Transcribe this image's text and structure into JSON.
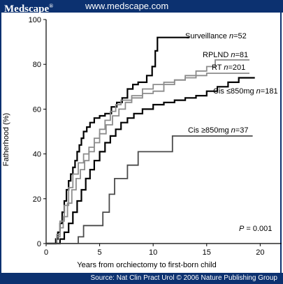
{
  "header": {
    "brand": "Medscape",
    "brand_mark": "®",
    "site": "www.medscape.com"
  },
  "footer": {
    "source": "Source: Nat Clin Pract Urol © 2006 Nature Publishing Group"
  },
  "colors": {
    "banner": "#0c3170",
    "black_series": "#000000",
    "gray_series": "#8c8c8c"
  },
  "chart_data": {
    "type": "line",
    "step": true,
    "xlabel": "Years from orchiectomy to first-born child",
    "ylabel": "Fatherhood (%)",
    "xlim": [
      0,
      22
    ],
    "ylim": [
      0,
      100
    ],
    "xticks": [
      0,
      5,
      10,
      15,
      20
    ],
    "yticks": [
      0,
      20,
      40,
      60,
      80,
      100
    ],
    "annotation": {
      "prefix": "P",
      "text": " = 0.001"
    },
    "series": [
      {
        "name": "Surveillance",
        "n_label": "n",
        "n_value": "=52",
        "color": "#000000",
        "points": [
          [
            0,
            0
          ],
          [
            0.9,
            0
          ],
          [
            0.9,
            2
          ],
          [
            1.1,
            5
          ],
          [
            1.3,
            9
          ],
          [
            1.5,
            14
          ],
          [
            1.7,
            19
          ],
          [
            1.9,
            24
          ],
          [
            2.1,
            28
          ],
          [
            2.3,
            31
          ],
          [
            2.5,
            34
          ],
          [
            2.7,
            37
          ],
          [
            2.9,
            41
          ],
          [
            3.1,
            44
          ],
          [
            3.3,
            47
          ],
          [
            3.5,
            50
          ],
          [
            3.8,
            52
          ],
          [
            4.1,
            54
          ],
          [
            4.5,
            56
          ],
          [
            5.0,
            57
          ],
          [
            5.5,
            58
          ],
          [
            6.1,
            61
          ],
          [
            6.6,
            63
          ],
          [
            7.1,
            65
          ],
          [
            7.6,
            69
          ],
          [
            8.1,
            71
          ],
          [
            8.6,
            72
          ],
          [
            9.4,
            75
          ],
          [
            9.9,
            79
          ],
          [
            10.2,
            86
          ],
          [
            10.4,
            92
          ],
          [
            13.4,
            92
          ]
        ]
      },
      {
        "name": "RPLND",
        "n_label": "n",
        "n_value": "=81",
        "color": "#8c8c8c",
        "points": [
          [
            0,
            0
          ],
          [
            1.0,
            0
          ],
          [
            1.0,
            3
          ],
          [
            1.3,
            7
          ],
          [
            1.6,
            12
          ],
          [
            2.0,
            18
          ],
          [
            2.4,
            24
          ],
          [
            2.8,
            29
          ],
          [
            3.2,
            33
          ],
          [
            3.6,
            37
          ],
          [
            4.0,
            41
          ],
          [
            4.5,
            45
          ],
          [
            5.0,
            49
          ],
          [
            5.6,
            53
          ],
          [
            6.2,
            57
          ],
          [
            6.8,
            60
          ],
          [
            7.4,
            63
          ],
          [
            8.0,
            65
          ],
          [
            9.0,
            67
          ],
          [
            10.0,
            68
          ],
          [
            11.0,
            71
          ],
          [
            12.0,
            73
          ],
          [
            13.0,
            75
          ],
          [
            14.0,
            77
          ],
          [
            15.0,
            79
          ],
          [
            15.8,
            82
          ],
          [
            19.0,
            82
          ]
        ]
      },
      {
        "name": "RT",
        "n_label": "n",
        "n_value": "=201",
        "color": "#8c8c8c",
        "points": [
          [
            0,
            0
          ],
          [
            1.0,
            0
          ],
          [
            1.0,
            4
          ],
          [
            1.3,
            10
          ],
          [
            1.7,
            17
          ],
          [
            2.1,
            25
          ],
          [
            2.5,
            31
          ],
          [
            3.0,
            36
          ],
          [
            3.5,
            40
          ],
          [
            4.0,
            43
          ],
          [
            4.5,
            47
          ],
          [
            5.0,
            51
          ],
          [
            5.5,
            55
          ],
          [
            6.0,
            59
          ],
          [
            6.5,
            62
          ],
          [
            7.0,
            64
          ],
          [
            8.0,
            66
          ],
          [
            9.0,
            69
          ],
          [
            10.0,
            71
          ],
          [
            11.0,
            72
          ],
          [
            12.0,
            73
          ],
          [
            13.0,
            74
          ],
          [
            14.0,
            75
          ],
          [
            15.0,
            76
          ],
          [
            17.0,
            76
          ],
          [
            19.0,
            76
          ]
        ]
      },
      {
        "name": "Cis ≤850mg",
        "n_label": "n",
        "n_value": "=181",
        "color": "#000000",
        "points": [
          [
            0,
            0
          ],
          [
            1.3,
            0
          ],
          [
            1.3,
            2
          ],
          [
            1.7,
            5
          ],
          [
            2.1,
            9
          ],
          [
            2.5,
            14
          ],
          [
            2.9,
            19
          ],
          [
            3.3,
            24
          ],
          [
            3.7,
            29
          ],
          [
            4.1,
            33
          ],
          [
            4.5,
            37
          ],
          [
            5.0,
            41
          ],
          [
            5.5,
            45
          ],
          [
            6.0,
            48
          ],
          [
            6.5,
            51
          ],
          [
            7.0,
            54
          ],
          [
            7.6,
            56
          ],
          [
            8.2,
            58
          ],
          [
            9.0,
            60
          ],
          [
            10.0,
            62
          ],
          [
            11.0,
            63
          ],
          [
            12.0,
            64
          ],
          [
            13.0,
            65
          ],
          [
            14.0,
            66
          ],
          [
            15.0,
            68
          ],
          [
            16.0,
            70
          ],
          [
            17.0,
            72
          ],
          [
            18.0,
            74
          ],
          [
            19.5,
            74
          ]
        ]
      },
      {
        "name": "Cis ≥850mg",
        "n_label": "n",
        "n_value": "=37",
        "color": "#4a4a4a",
        "points": [
          [
            0,
            0
          ],
          [
            2.5,
            0
          ],
          [
            3.0,
            3
          ],
          [
            3.5,
            8
          ],
          [
            5.0,
            8
          ],
          [
            5.3,
            14
          ],
          [
            5.9,
            22
          ],
          [
            6.4,
            29
          ],
          [
            7.2,
            29
          ],
          [
            7.6,
            35
          ],
          [
            8.6,
            41
          ],
          [
            11.8,
            41
          ],
          [
            11.8,
            48
          ],
          [
            19.3,
            48
          ]
        ]
      }
    ]
  }
}
